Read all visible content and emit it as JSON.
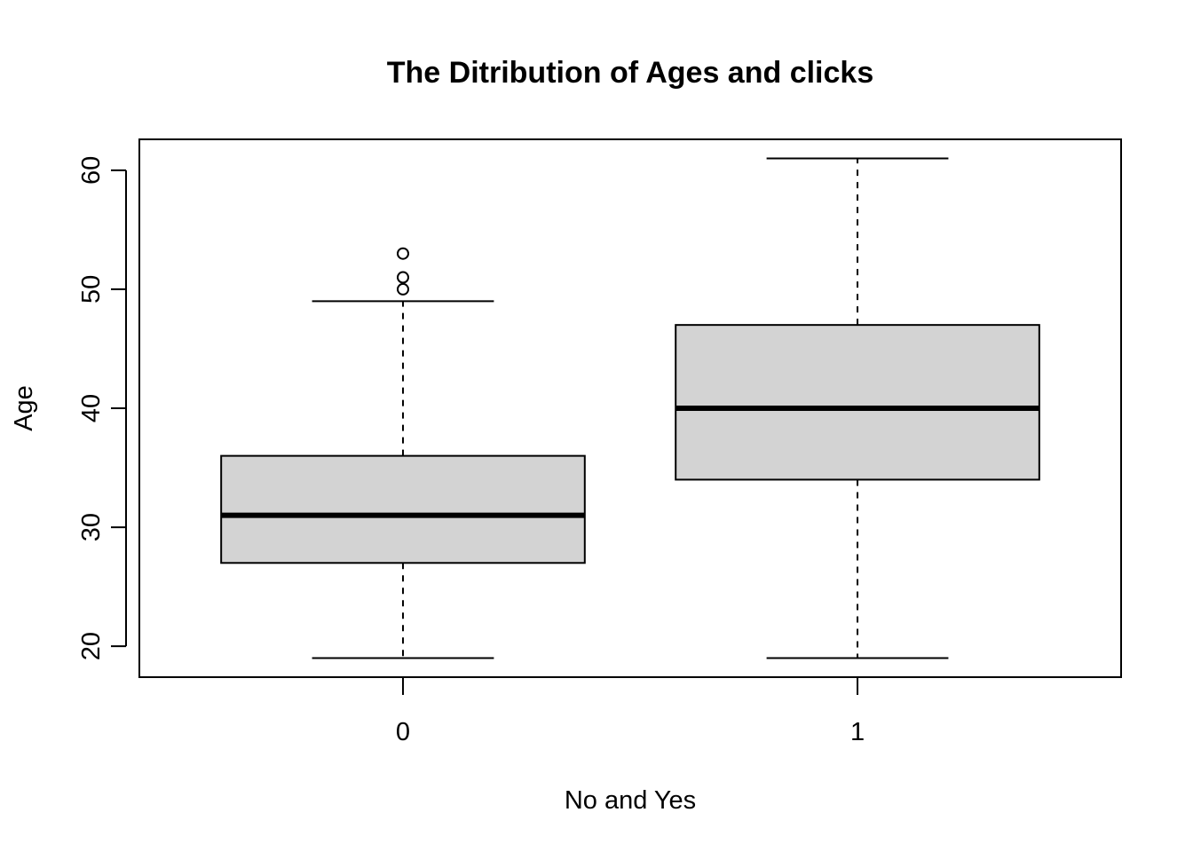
{
  "chart_data": {
    "type": "boxplot",
    "title": "The Ditribution of Ages and clicks",
    "xlabel": "No and Yes",
    "ylabel": "Age",
    "categories": [
      "0",
      "1"
    ],
    "boxes": [
      {
        "category": "0",
        "min": 19,
        "q1": 27,
        "median": 31,
        "q3": 36,
        "max": 49,
        "outliers": [
          50,
          51,
          53
        ]
      },
      {
        "category": "1",
        "min": 19,
        "q1": 34,
        "median": 40,
        "q3": 47,
        "max": 61,
        "outliers": []
      }
    ],
    "ylim": [
      17.4,
      62.6
    ],
    "yticks": [
      20,
      30,
      40,
      50,
      60
    ],
    "grid": false,
    "box_fill": "#d3d3d3",
    "line_color": "#000000"
  }
}
